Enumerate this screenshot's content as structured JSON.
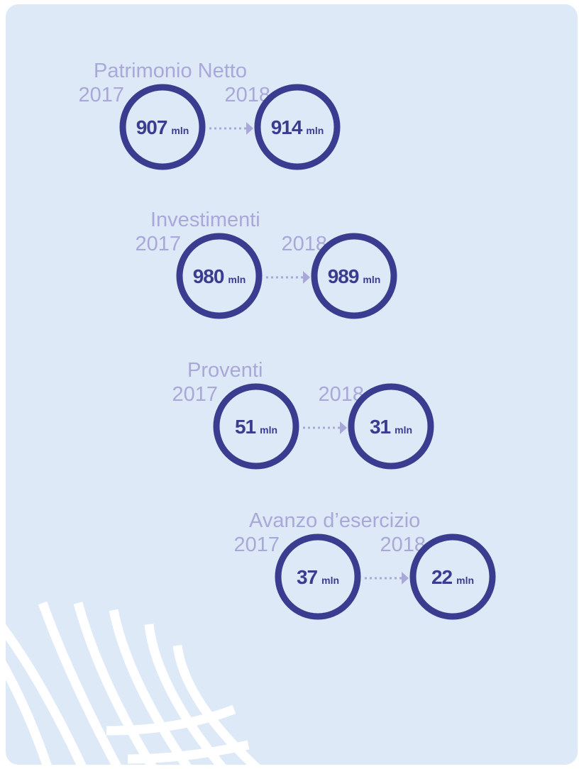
{
  "items": [
    {
      "title": "Patrimonio Netto",
      "from": {
        "year": "2017",
        "value": 907,
        "unit": "mln"
      },
      "to": {
        "year": "2018",
        "value": 914,
        "unit": "mln"
      }
    },
    {
      "title": "Investimenti",
      "from": {
        "year": "2017",
        "value": 980,
        "unit": "mln"
      },
      "to": {
        "year": "2018",
        "value": 989,
        "unit": "mln"
      }
    },
    {
      "title": "Proventi",
      "from": {
        "year": "2017",
        "value": 51,
        "unit": "mln"
      },
      "to": {
        "year": "2018",
        "value": 31,
        "unit": "mln"
      }
    },
    {
      "title": "Avanzo d’esercizio",
      "from": {
        "year": "2017",
        "value": 37,
        "unit": "mln"
      },
      "to": {
        "year": "2018",
        "value": 22,
        "unit": "mln"
      }
    }
  ]
}
